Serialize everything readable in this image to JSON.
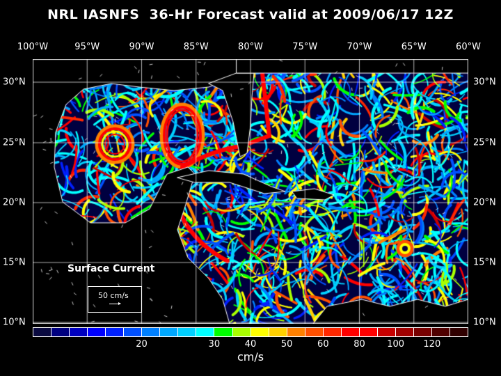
{
  "title": "NRL IASNFS  36-Hr Forecast valid at 2009/06/17 12Z",
  "lon_labels": [
    "100°W",
    "95°W",
    "90°W",
    "85°W",
    "80°W",
    "75°W",
    "70°W",
    "65°W",
    "60°W"
  ],
  "lat_labels": [
    "30°N",
    "25°N",
    "20°N",
    "15°N",
    "10°N"
  ],
  "legend": {
    "title": "Surface Current",
    "reference": "50 cm/s"
  },
  "colorbar": {
    "unit": "cm/s",
    "ticks": [
      "20",
      "30",
      "40",
      "50",
      "60",
      "80",
      "100",
      "120"
    ],
    "colors": [
      "#0a0a40",
      "#000080",
      "#0000c0",
      "#0000ff",
      "#0020ff",
      "#0050ff",
      "#0080ff",
      "#00a8ff",
      "#00d0ff",
      "#00ffff",
      "#00ff00",
      "#a8ff00",
      "#ffff00",
      "#ffd000",
      "#ff8000",
      "#ff5000",
      "#ff2800",
      "#ff0000",
      "#ff0000",
      "#c80000",
      "#a00000",
      "#780000",
      "#500000",
      "#300000"
    ]
  },
  "map": {
    "variable": "surface current speed",
    "extent_lon": [
      -100,
      -60
    ],
    "extent_lat": [
      10,
      31
    ],
    "land_color": "#000000",
    "grid_color": "#ffffff"
  }
}
